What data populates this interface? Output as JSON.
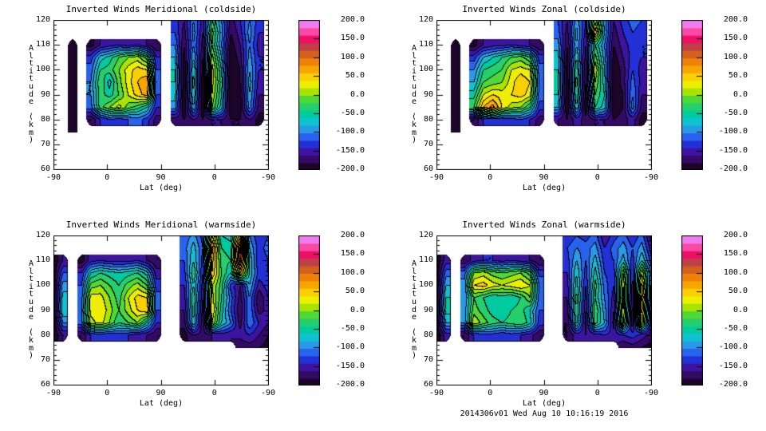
{
  "footer": {
    "timestamp": "2014306v01 Wed Aug 10 10:16:19 2016"
  },
  "axes": {
    "x_label": "Lat (deg)",
    "y_label": "Altitude (km)",
    "x_ticks": [
      "-90",
      "0",
      "90",
      "0",
      "-90"
    ],
    "y_ticks": [
      "120",
      "110",
      "100",
      "90",
      "80",
      "70",
      "60"
    ]
  },
  "colorbar": {
    "labels": [
      "200.0",
      "150.0",
      "100.0",
      "50.0",
      "0.0",
      "-50.0",
      "-100.0",
      "-150.0",
      "-200.0"
    ],
    "range": [
      -200,
      200
    ]
  },
  "colormap": {
    "min": -200,
    "max": 200,
    "step": 20,
    "bands": [
      "#1c0528",
      "#330a66",
      "#3c14a0",
      "#2230d6",
      "#2763ec",
      "#2a9ae8",
      "#0ec2d2",
      "#00cba0",
      "#25d06c",
      "#4fd838",
      "#a8e400",
      "#eeee00",
      "#fad000",
      "#f7a600",
      "#ef8108",
      "#d2601e",
      "#c04048",
      "#ee0f66",
      "#fb48a4",
      "#ef7cee"
    ],
    "line_color": "#000000",
    "background": "#ffffff"
  },
  "chart_data": [
    {
      "type": "contour",
      "title": "Inverted Winds Meridional (coldside)",
      "xlabel": "Lat (deg)",
      "ylabel": "Altitude (km)",
      "x_ticks": [
        "-90",
        "0",
        "90",
        "0",
        "-90"
      ],
      "ylim": [
        60,
        120
      ],
      "zlim": [
        -200,
        200
      ],
      "contour_step": 20,
      "alt_km": [
        75,
        80,
        85,
        90,
        95,
        100,
        105,
        110,
        115,
        120
      ],
      "n_cols": 24,
      "values": [
        [
          null,
          null,
          -200,
          null,
          null,
          null,
          null,
          null,
          null,
          null,
          null,
          null,
          null,
          null,
          null,
          null,
          null,
          null,
          null,
          null,
          null,
          null,
          null,
          null
        ],
        [
          null,
          null,
          -200,
          null,
          -180,
          -140,
          -120,
          -130,
          -120,
          -110,
          -130,
          -170,
          null,
          -170,
          -180,
          -160,
          -180,
          -160,
          -160,
          -180,
          -180,
          -160,
          -190,
          null
        ],
        [
          null,
          null,
          -200,
          null,
          -110,
          -30,
          0,
          30,
          -10,
          -30,
          -60,
          -140,
          null,
          -90,
          -200,
          -80,
          -200,
          0,
          -70,
          -200,
          -190,
          -90,
          -170,
          null
        ],
        [
          null,
          null,
          -200,
          null,
          -100,
          -30,
          -50,
          -20,
          20,
          50,
          70,
          -120,
          null,
          -70,
          -200,
          -60,
          -200,
          20,
          -60,
          -200,
          -190,
          -80,
          -160,
          null
        ],
        [
          null,
          null,
          -200,
          null,
          -100,
          -20,
          -70,
          -10,
          30,
          60,
          80,
          -110,
          null,
          -60,
          -200,
          -50,
          -200,
          30,
          -50,
          -200,
          -180,
          -70,
          -150,
          null
        ],
        [
          null,
          null,
          -200,
          null,
          -110,
          -40,
          -30,
          0,
          30,
          50,
          40,
          -120,
          null,
          -60,
          -200,
          -60,
          -190,
          30,
          -60,
          -200,
          -180,
          -80,
          -140,
          null
        ],
        [
          null,
          null,
          -200,
          null,
          -130,
          -70,
          -50,
          -20,
          0,
          10,
          -30,
          -140,
          null,
          -80,
          -190,
          -80,
          -180,
          10,
          -80,
          -200,
          -170,
          -90,
          -140,
          null
        ],
        [
          null,
          null,
          -200,
          null,
          -190,
          -160,
          -150,
          -140,
          -150,
          -140,
          -160,
          -180,
          null,
          -100,
          -180,
          -100,
          -170,
          -20,
          -100,
          -190,
          -160,
          -100,
          -150,
          null
        ],
        [
          null,
          null,
          null,
          null,
          null,
          null,
          null,
          null,
          null,
          null,
          null,
          null,
          null,
          -120,
          -170,
          -90,
          -160,
          -10,
          -90,
          -180,
          -150,
          -90,
          -140,
          null
        ],
        [
          null,
          null,
          null,
          null,
          null,
          null,
          null,
          null,
          null,
          null,
          null,
          null,
          null,
          -130,
          -160,
          -100,
          -150,
          -40,
          -100,
          -170,
          -140,
          -100,
          -130,
          null
        ]
      ]
    },
    {
      "type": "contour",
      "title": "Inverted Winds Zonal (coldside)",
      "xlabel": "Lat (deg)",
      "ylabel": "Altitude (km)",
      "x_ticks": [
        "-90",
        "0",
        "90",
        "0",
        "-90"
      ],
      "ylim": [
        60,
        120
      ],
      "zlim": [
        -200,
        200
      ],
      "contour_step": 20,
      "alt_km": [
        75,
        80,
        85,
        90,
        95,
        100,
        105,
        110,
        115,
        120
      ],
      "n_cols": 24,
      "values": [
        [
          null,
          null,
          -200,
          null,
          null,
          null,
          null,
          null,
          null,
          null,
          null,
          null,
          null,
          null,
          null,
          null,
          null,
          null,
          null,
          null,
          null,
          null,
          null,
          null
        ],
        [
          null,
          null,
          -200,
          null,
          -180,
          -140,
          -130,
          -140,
          -130,
          -120,
          -140,
          -170,
          null,
          -160,
          -180,
          -150,
          -170,
          -160,
          -160,
          -180,
          -170,
          -150,
          -190,
          null
        ],
        [
          null,
          null,
          -200,
          null,
          -20,
          60,
          90,
          40,
          10,
          0,
          -40,
          -130,
          null,
          -80,
          -200,
          -60,
          -200,
          -40,
          -70,
          -200,
          -180,
          -90,
          -170,
          null
        ],
        [
          null,
          null,
          -200,
          null,
          -50,
          20,
          40,
          30,
          40,
          50,
          30,
          -110,
          null,
          -60,
          -200,
          -40,
          -190,
          -20,
          -60,
          -200,
          -180,
          -100,
          -160,
          null
        ],
        [
          null,
          null,
          -200,
          null,
          -80,
          -20,
          -10,
          0,
          30,
          60,
          40,
          -100,
          null,
          -50,
          -200,
          -30,
          -180,
          0,
          -70,
          -200,
          -170,
          -110,
          -150,
          null
        ],
        [
          null,
          null,
          -200,
          null,
          -100,
          -40,
          -30,
          -20,
          20,
          30,
          20,
          -110,
          null,
          -60,
          -190,
          -40,
          -180,
          20,
          -80,
          -200,
          -170,
          -120,
          -150,
          null
        ],
        [
          null,
          null,
          -200,
          null,
          -130,
          -80,
          -60,
          -40,
          -20,
          -10,
          -40,
          -130,
          null,
          -70,
          -190,
          -60,
          -170,
          -10,
          -90,
          -190,
          -160,
          -130,
          -140,
          null
        ],
        [
          null,
          null,
          -200,
          null,
          -190,
          -160,
          -150,
          -150,
          -140,
          -150,
          -160,
          -180,
          null,
          -90,
          -180,
          -80,
          -160,
          -40,
          -100,
          -180,
          -150,
          -130,
          -140,
          null
        ],
        [
          null,
          null,
          null,
          null,
          null,
          null,
          null,
          null,
          null,
          null,
          null,
          null,
          null,
          -110,
          -170,
          -70,
          -150,
          60,
          -80,
          -170,
          -140,
          -120,
          -130,
          null
        ],
        [
          null,
          null,
          null,
          null,
          null,
          null,
          null,
          null,
          null,
          null,
          null,
          null,
          null,
          -120,
          -160,
          -90,
          -140,
          10,
          -90,
          -160,
          -130,
          -110,
          -120,
          null
        ]
      ]
    },
    {
      "type": "contour",
      "title": "Inverted Winds Meridional (warmside)",
      "xlabel": "Lat (deg)",
      "ylabel": "Altitude (km)",
      "x_ticks": [
        "-90",
        "0",
        "90",
        "0",
        "-90"
      ],
      "ylim": [
        60,
        120
      ],
      "zlim": [
        -200,
        200
      ],
      "contour_step": 20,
      "alt_km": [
        75,
        80,
        85,
        90,
        95,
        100,
        105,
        110,
        115,
        120
      ],
      "n_cols": 24,
      "values": [
        [
          null,
          null,
          null,
          null,
          null,
          null,
          null,
          null,
          null,
          null,
          null,
          null,
          null,
          null,
          null,
          null,
          null,
          null,
          null,
          null,
          -180,
          -170,
          -180,
          -190
        ],
        [
          -200,
          -160,
          null,
          -180,
          -140,
          -130,
          -140,
          -130,
          -140,
          -150,
          -160,
          -180,
          null,
          null,
          -190,
          -160,
          -170,
          -160,
          -150,
          -160,
          -150,
          -140,
          -160,
          -180
        ],
        [
          -200,
          -100,
          null,
          -110,
          10,
          30,
          0,
          -40,
          -20,
          0,
          -60,
          -140,
          null,
          null,
          -170,
          -60,
          -180,
          20,
          -60,
          -100,
          -170,
          -100,
          -140,
          -160
        ],
        [
          -200,
          -60,
          null,
          -100,
          30,
          40,
          10,
          -20,
          10,
          40,
          60,
          -120,
          null,
          null,
          -160,
          -50,
          -170,
          40,
          -50,
          -120,
          -180,
          -100,
          -170,
          -150
        ],
        [
          -200,
          -70,
          null,
          -110,
          30,
          30,
          0,
          -30,
          20,
          50,
          40,
          -110,
          null,
          null,
          -150,
          -40,
          -160,
          30,
          -40,
          -110,
          -170,
          -100,
          -180,
          -140
        ],
        [
          -200,
          -90,
          null,
          -120,
          -10,
          0,
          -20,
          -40,
          -10,
          10,
          -20,
          -130,
          null,
          null,
          -140,
          -60,
          -150,
          20,
          -30,
          -130,
          -160,
          -80,
          -150,
          -130
        ],
        [
          -200,
          -120,
          null,
          -140,
          -60,
          -40,
          -50,
          -60,
          -50,
          -40,
          -70,
          -150,
          null,
          null,
          -130,
          -40,
          -140,
          60,
          -20,
          -60,
          60,
          -60,
          -130,
          -120
        ],
        [
          -200,
          -160,
          null,
          -190,
          -150,
          -140,
          -150,
          -150,
          -150,
          -140,
          -160,
          -180,
          null,
          null,
          -120,
          -60,
          -130,
          70,
          -30,
          -40,
          130,
          -60,
          -140,
          -120
        ],
        [
          null,
          null,
          null,
          null,
          null,
          null,
          null,
          null,
          null,
          null,
          null,
          null,
          null,
          null,
          -110,
          -70,
          -120,
          90,
          -40,
          -50,
          150,
          -80,
          -130,
          -110
        ],
        [
          null,
          null,
          null,
          null,
          null,
          null,
          null,
          null,
          null,
          null,
          null,
          null,
          null,
          null,
          -120,
          -90,
          -130,
          40,
          -60,
          -70,
          60,
          -100,
          -140,
          -120
        ]
      ]
    },
    {
      "type": "contour",
      "title": "Inverted Winds Zonal (warmside)",
      "xlabel": "Lat (deg)",
      "ylabel": "Altitude (km)",
      "x_ticks": [
        "-90",
        "0",
        "90",
        "0",
        "-90"
      ],
      "ylim": [
        60,
        120
      ],
      "zlim": [
        -200,
        200
      ],
      "contour_step": 20,
      "alt_km": [
        75,
        80,
        85,
        90,
        95,
        100,
        105,
        110,
        115,
        120
      ],
      "n_cols": 24,
      "values": [
        [
          null,
          null,
          null,
          null,
          null,
          null,
          null,
          null,
          null,
          null,
          null,
          null,
          null,
          null,
          null,
          null,
          null,
          null,
          null,
          null,
          -180,
          -170,
          -180,
          -190
        ],
        [
          -200,
          -150,
          null,
          -180,
          -140,
          -130,
          -130,
          -140,
          -130,
          -140,
          -150,
          -180,
          null,
          null,
          -180,
          -150,
          -160,
          -150,
          -140,
          -150,
          -140,
          -130,
          -150,
          -170
        ],
        [
          -200,
          -80,
          null,
          -100,
          20,
          -10,
          -30,
          -40,
          -30,
          -20,
          -50,
          -130,
          null,
          null,
          -180,
          -50,
          -170,
          -30,
          -80,
          -170,
          10,
          -180,
          30,
          -150
        ],
        [
          -200,
          -50,
          null,
          -90,
          -10,
          -30,
          -50,
          -60,
          -40,
          -30,
          -60,
          -120,
          null,
          null,
          -170,
          -40,
          -160,
          -20,
          -90,
          -160,
          20,
          -170,
          50,
          -140
        ],
        [
          -200,
          -60,
          null,
          -100,
          -20,
          -40,
          -60,
          -50,
          -60,
          -40,
          0,
          -110,
          null,
          null,
          -160,
          -30,
          -150,
          -40,
          -100,
          -150,
          30,
          -160,
          70,
          -130
        ],
        [
          -200,
          -80,
          null,
          -90,
          40,
          50,
          30,
          20,
          30,
          40,
          20,
          -100,
          null,
          null,
          -150,
          -50,
          -140,
          -30,
          -110,
          -140,
          20,
          -150,
          50,
          -120
        ],
        [
          -200,
          -110,
          null,
          -110,
          0,
          10,
          -10,
          -20,
          -10,
          0,
          -30,
          -130,
          null,
          null,
          -140,
          -60,
          -130,
          -50,
          -120,
          -130,
          0,
          -140,
          20,
          -110
        ],
        [
          -200,
          -150,
          null,
          -180,
          -150,
          -140,
          -140,
          -150,
          -140,
          -150,
          -160,
          -180,
          null,
          null,
          -130,
          -80,
          -120,
          -70,
          -130,
          -120,
          -70,
          -130,
          -60,
          -130
        ],
        [
          null,
          null,
          null,
          null,
          null,
          null,
          null,
          null,
          null,
          null,
          null,
          null,
          null,
          null,
          -120,
          -100,
          -110,
          -90,
          -140,
          -110,
          -90,
          -120,
          -90,
          -150
        ],
        [
          null,
          null,
          null,
          null,
          null,
          null,
          null,
          null,
          null,
          null,
          null,
          null,
          null,
          null,
          -140,
          -120,
          -130,
          -110,
          -160,
          -130,
          -110,
          -140,
          -110,
          -170
        ]
      ]
    }
  ]
}
